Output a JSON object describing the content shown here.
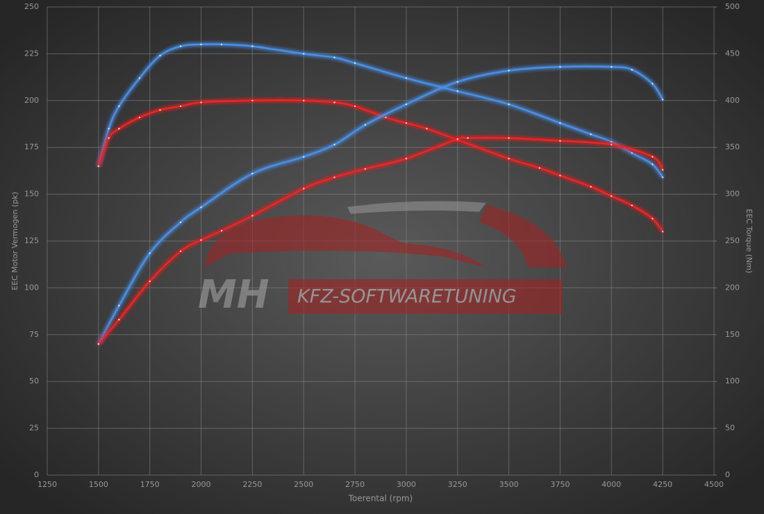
{
  "chart_data": {
    "type": "line",
    "xlabel": "Toerental (rpm)",
    "ylabel": "EEC Motor Vermogen (pk)",
    "y2label": "EEC Torque (Nm)",
    "watermark": [
      "MH",
      "KFZ-SOFTWARETUNING"
    ],
    "xlim": [
      1250,
      4500
    ],
    "xticks": [
      1250,
      1500,
      1750,
      2000,
      2250,
      2500,
      2750,
      3000,
      3250,
      3500,
      3750,
      4000,
      4250,
      4500
    ],
    "ylim": [
      0,
      250
    ],
    "yticks": [
      0,
      25,
      50,
      75,
      100,
      125,
      150,
      175,
      200,
      225,
      250
    ],
    "y2lim": [
      0,
      500
    ],
    "y2ticks": [
      0,
      50,
      100,
      150,
      200,
      250,
      300,
      350,
      400,
      450,
      500
    ],
    "grid": true,
    "series": [
      {
        "color": "#4a8fe6",
        "axis": "y",
        "x": [
          1500,
          1550,
          1600,
          1700,
          1800,
          1900,
          2000,
          2100,
          2250,
          2500,
          2650,
          2750,
          3000,
          3250,
          3500,
          3750,
          3900,
          4000,
          4100,
          4200,
          4250
        ],
        "values": [
          165,
          185,
          197,
          212,
          224,
          229,
          230,
          230,
          229,
          225,
          223,
          220,
          212,
          205,
          198,
          188,
          182,
          178,
          172,
          166,
          159
        ]
      },
      {
        "color": "#e82828",
        "axis": "y",
        "x": [
          1500,
          1550,
          1600,
          1700,
          1800,
          1900,
          2000,
          2250,
          2500,
          2650,
          2750,
          2900,
          3000,
          3100,
          3250,
          3500,
          3650,
          3750,
          3900,
          4000,
          4100,
          4200,
          4250
        ],
        "values": [
          165,
          180,
          185,
          191,
          195,
          197,
          199,
          200,
          200,
          199,
          197,
          191,
          188,
          185,
          179,
          169,
          164,
          160,
          154,
          149,
          144,
          137,
          130
        ]
      },
      {
        "color": "#4a8fe6",
        "axis": "y2",
        "x": [
          1500,
          1600,
          1750,
          1900,
          2000,
          2250,
          2500,
          2650,
          2800,
          3000,
          3250,
          3500,
          3750,
          4000,
          4100,
          4200,
          4250
        ],
        "values": [
          140,
          181,
          237,
          270,
          286,
          322,
          340,
          353,
          374,
          396,
          420,
          432,
          436,
          436,
          433,
          418,
          401
        ]
      },
      {
        "color": "#e82828",
        "axis": "y2",
        "x": [
          1500,
          1600,
          1750,
          1900,
          2000,
          2100,
          2250,
          2500,
          2650,
          2800,
          3000,
          3250,
          3300,
          3500,
          3750,
          4000,
          4200,
          4250
        ],
        "values": [
          140,
          166,
          207,
          239,
          251,
          261,
          277,
          306,
          318,
          327,
          338,
          359,
          360,
          360,
          357,
          353,
          340,
          326
        ]
      }
    ]
  }
}
